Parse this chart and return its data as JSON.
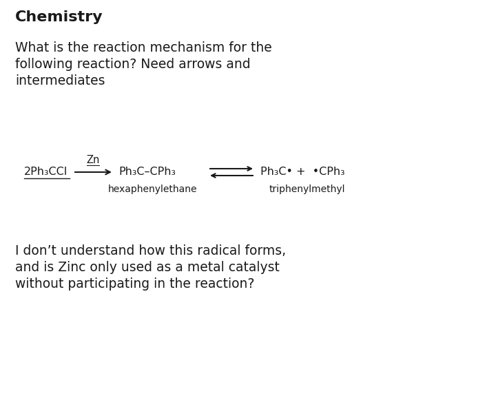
{
  "title": "Chemistry",
  "question_line1": "What is the reaction mechanism for the",
  "question_line2": "following reaction? Need arrows and",
  "question_line3": "intermediates",
  "footer_line1": "I don’t understand how this radical forms,",
  "footer_line2": "and is Zinc only used as a metal catalyst",
  "footer_line3": "without participating in the reaction?",
  "reactant": "2Ph₃CCl",
  "catalyst": "Zn",
  "product1": "Ph₃C–CPh₃",
  "product1_label": "hexaphenylethane",
  "product2": "Ph₃C• +  •CPh₃",
  "product2_label": "triphenylmethyl",
  "bg_color": "#ffffff",
  "text_color": "#1a1a1a",
  "title_fontsize": 16,
  "body_fontsize": 13.5,
  "chem_fontsize": 11.5,
  "chem_label_fontsize": 10
}
